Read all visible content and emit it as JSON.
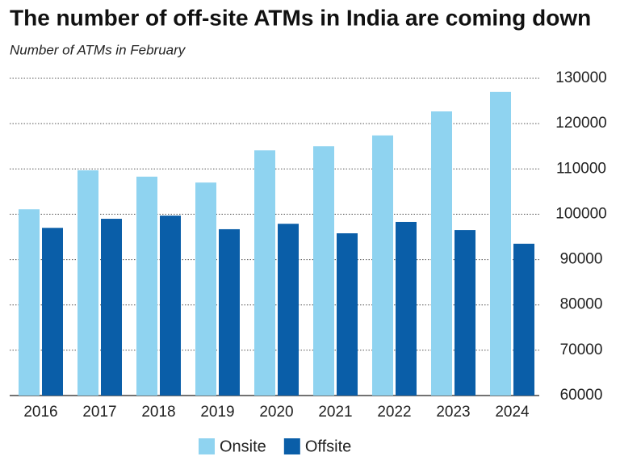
{
  "chart_data": {
    "type": "bar",
    "title": "The number of off-site ATMs in India are coming down",
    "subtitle": "Number of ATMs in February",
    "categories": [
      "2016",
      "2017",
      "2018",
      "2019",
      "2020",
      "2021",
      "2022",
      "2023",
      "2024"
    ],
    "series": [
      {
        "name": "Onsite",
        "color": "#8fd3f0",
        "values": [
          101100,
          109700,
          108300,
          107000,
          114100,
          115000,
          117400,
          122700,
          127000
        ]
      },
      {
        "name": "Offsite",
        "color": "#0a5ea8",
        "values": [
          97000,
          99000,
          99700,
          96700,
          97900,
          95800,
          98300,
          96500,
          93500
        ]
      }
    ],
    "ylim": [
      60000,
      130000
    ],
    "yticks": [
      60000,
      70000,
      80000,
      90000,
      100000,
      110000,
      120000,
      130000
    ],
    "grid": true
  }
}
